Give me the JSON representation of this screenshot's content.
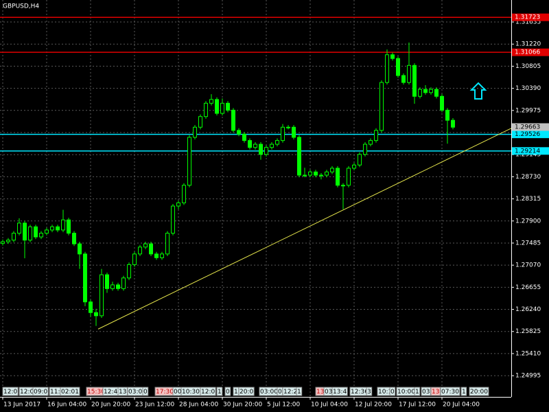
{
  "chart_data": {
    "type": "candlestick",
    "title": "GBPUSD,H4",
    "x": [
      0,
      2,
      4,
      6,
      8,
      10,
      12,
      14,
      16,
      18,
      20,
      22,
      24,
      26,
      28,
      30,
      32,
      34,
      36,
      38,
      40,
      42,
      44,
      46,
      48,
      50,
      52,
      54,
      56,
      58,
      60,
      62,
      64,
      66,
      68,
      70,
      72,
      74,
      76,
      78,
      80,
      82,
      84,
      86,
      88,
      90,
      92,
      94,
      96,
      98,
      100,
      102,
      104,
      106,
      108,
      110,
      112,
      114,
      116,
      118,
      120,
      122,
      124,
      126,
      128,
      130,
      132,
      134,
      136,
      138,
      140,
      142,
      144,
      146,
      148,
      150,
      152,
      154,
      156,
      158,
      160,
      162,
      164
    ],
    "open": [
      1.2748,
      1.2751,
      1.2754,
      1.2767,
      1.2786,
      1.2754,
      1.2779,
      1.276,
      1.2767,
      1.2773,
      1.2779,
      1.2773,
      1.2792,
      1.2767,
      1.2747,
      1.2728,
      1.2638,
      1.2618,
      1.2612,
      1.2689,
      1.2663,
      1.267,
      1.2663,
      1.2683,
      1.2708,
      1.2728,
      1.2741,
      1.2747,
      1.2728,
      1.2721,
      1.2728,
      1.2767,
      1.2818,
      1.2824,
      1.2857,
      1.2947,
      1.2966,
      1.2986,
      1.3011,
      1.3018,
      1.2992,
      1.3011,
      1.2998,
      1.296,
      1.2953,
      1.2941,
      1.2928,
      1.2934,
      1.2915,
      1.2928,
      1.2934,
      1.2941,
      1.2966,
      1.2966,
      1.2947,
      1.2876,
      1.2876,
      1.2882,
      1.2876,
      1.2876,
      1.2882,
      1.2889,
      1.2857,
      1.2857,
      1.2889,
      1.2895,
      1.2915,
      1.2934,
      1.2941,
      1.296,
      1.305,
      1.3102,
      1.3095,
      1.3063,
      1.305,
      1.3082,
      1.3024,
      1.3037,
      1.3031,
      1.3037,
      1.3024,
      1.2998,
      1.2979
    ],
    "high": [
      1.2755,
      1.2758,
      1.2771,
      1.2795,
      1.279,
      1.2783,
      1.2783,
      1.2771,
      1.2777,
      1.2783,
      1.2783,
      1.2811,
      1.2796,
      1.2771,
      1.2751,
      1.2732,
      1.2642,
      1.2625,
      1.27,
      1.2693,
      1.2676,
      1.2674,
      1.2687,
      1.2712,
      1.2732,
      1.2745,
      1.2751,
      1.2751,
      1.2732,
      1.2732,
      1.2771,
      1.2822,
      1.2828,
      1.2861,
      1.2951,
      1.297,
      1.299,
      1.3015,
      1.3028,
      1.3022,
      1.302,
      1.3015,
      1.3002,
      1.2964,
      1.2957,
      1.2945,
      1.2938,
      1.2938,
      1.2932,
      1.2938,
      1.2945,
      1.2972,
      1.297,
      1.297,
      1.2951,
      1.289,
      1.2886,
      1.2886,
      1.288,
      1.2886,
      1.2893,
      1.2893,
      1.2861,
      1.2893,
      1.2899,
      1.2919,
      1.2938,
      1.2945,
      1.2964,
      1.3054,
      1.3112,
      1.3106,
      1.3099,
      1.3067,
      1.3125,
      1.3086,
      1.3041,
      1.3045,
      1.3041,
      1.3041,
      1.3028,
      1.3002,
      1.2983
    ],
    "low": [
      1.2744,
      1.2747,
      1.275,
      1.2763,
      1.272,
      1.275,
      1.2756,
      1.2756,
      1.2763,
      1.2769,
      1.2769,
      1.2769,
      1.2763,
      1.2743,
      1.27,
      1.263,
      1.261,
      1.2593,
      1.2608,
      1.2655,
      1.2659,
      1.2659,
      1.2659,
      1.2679,
      1.2704,
      1.2724,
      1.2737,
      1.2724,
      1.2717,
      1.2717,
      1.2724,
      1.2763,
      1.2812,
      1.282,
      1.2853,
      1.2943,
      1.2962,
      1.2982,
      1.3007,
      1.2988,
      1.2988,
      1.2994,
      1.2956,
      1.2949,
      1.2937,
      1.2924,
      1.2924,
      1.2905,
      1.2911,
      1.2924,
      1.293,
      1.2937,
      1.2962,
      1.2943,
      1.2872,
      1.2872,
      1.2872,
      1.2872,
      1.2868,
      1.2872,
      1.2878,
      1.2853,
      1.2812,
      1.2853,
      1.2885,
      1.2891,
      1.2911,
      1.293,
      1.2937,
      1.2956,
      1.3046,
      1.3091,
      1.3059,
      1.3046,
      1.3046,
      1.301,
      1.302,
      1.3027,
      1.3027,
      1.302,
      1.2994,
      1.2935,
      1.2962
    ],
    "close": [
      1.2751,
      1.2754,
      1.2767,
      1.2786,
      1.2754,
      1.2779,
      1.276,
      1.2767,
      1.2773,
      1.2779,
      1.2773,
      1.2792,
      1.2767,
      1.2747,
      1.2728,
      1.2638,
      1.2618,
      1.2612,
      1.2689,
      1.2663,
      1.267,
      1.2663,
      1.2683,
      1.2708,
      1.2728,
      1.2741,
      1.2747,
      1.2728,
      1.2721,
      1.2728,
      1.2767,
      1.2818,
      1.2824,
      1.2857,
      1.2947,
      1.2966,
      1.2986,
      1.3011,
      1.3018,
      1.2992,
      1.3011,
      1.2998,
      1.296,
      1.2953,
      1.2941,
      1.2928,
      1.2934,
      1.2915,
      1.2928,
      1.2934,
      1.2941,
      1.2966,
      1.2966,
      1.2947,
      1.2876,
      1.2876,
      1.2882,
      1.2876,
      1.2876,
      1.2882,
      1.2889,
      1.2857,
      1.2857,
      1.2889,
      1.2895,
      1.2915,
      1.2934,
      1.2941,
      1.296,
      1.305,
      1.3102,
      1.3095,
      1.3063,
      1.305,
      1.3082,
      1.3024,
      1.3037,
      1.3031,
      1.3037,
      1.3024,
      1.2998,
      1.2979,
      1.2966
    ],
    "color": "#00ff00",
    "xlim": [
      -1,
      185.25
    ],
    "ylim": [
      1.24597,
      1.32048
    ],
    "yticks": [
      1.31635,
      {
        "value": 1.3122,
        "label": "1.31220"
      },
      1.30805,
      {
        "value": 1.3039,
        "label": "1.30390"
      },
      1.29975,
      {
        "value": 1.2956,
        "label": "1.29560"
      },
      1.29145,
      {
        "value": 1.2873,
        "label": "1.28730"
      },
      1.28315,
      {
        "value": 1.279,
        "label": "1.27900"
      },
      1.27485,
      {
        "value": 1.2707,
        "label": "1.27070"
      },
      1.26655,
      {
        "value": 1.2624,
        "label": "1.26240"
      },
      1.25825,
      {
        "value": 1.2541,
        "label": "1.25410"
      },
      1.24995
    ],
    "xticks": [
      {
        "value": 0,
        "label": "13 Jun 2017"
      },
      {
        "value": 16,
        "label": "16 Jun 04:00"
      },
      {
        "value": 32,
        "label": "20 Jun 20:00"
      },
      {
        "value": 48,
        "label": "23 Jun 12:00"
      },
      {
        "value": 64,
        "label": "28 Jun 04:00"
      },
      {
        "value": 80,
        "label": "30 Jun 20:00"
      },
      {
        "value": 96,
        "label": "5 Jul 12:00"
      },
      {
        "value": 112,
        "label": "10 Jul 04:00"
      },
      {
        "value": 128,
        "label": "12 Jul 20:00"
      },
      {
        "value": 144,
        "label": "17 Jul 12:00"
      },
      {
        "value": 160,
        "label": "20 Jul 04:00"
      }
    ],
    "grid": true,
    "hlines": [
      {
        "value": 1.31723,
        "color": "#e00000"
      },
      {
        "value": 1.31066,
        "color": "#e00000"
      },
      {
        "value": 1.29526,
        "color": "#00e8ff"
      },
      {
        "value": 1.29214,
        "color": "#00e8ff"
      }
    ],
    "bid": {
      "value": 1.29663,
      "color": "#c0c0c0"
    },
    "trendline": {
      "x": [
        34.75,
        185.25
      ],
      "y": [
        1.2587,
        1.2964
      ],
      "color": "#e6e64c"
    },
    "events": [
      {
        "x": 0,
        "label": "12:0",
        "color": "#d8ecec"
      },
      {
        "x": 6,
        "label": "12:0",
        "color": "#d8ecec"
      },
      {
        "x": 11,
        "label": "09:0",
        "color": "#d8ecec"
      },
      {
        "x": 17,
        "label": "11:0",
        "color": "#d8ecec"
      },
      {
        "x": 21,
        "label": "02:01",
        "color": "#d8ecec"
      },
      {
        "x": 30.5,
        "label": "15:30",
        "color": "#f4c4c4"
      },
      {
        "x": 36.5,
        "label": "12:40",
        "color": "#d8ecec"
      },
      {
        "x": 42,
        "label": "13",
        "color": "#d8ecec"
      },
      {
        "x": 45.5,
        "label": "03:00",
        "color": "#d8ecec"
      },
      {
        "x": 51,
        "label": "0",
        "color": "#d8ecec"
      },
      {
        "x": 55.5,
        "label": "17:30",
        "color": "#f4c4c4"
      },
      {
        "x": 62,
        "label": "00",
        "color": "#d8ecec"
      },
      {
        "x": 65,
        "label": "10:30",
        "color": "#d8ecec"
      },
      {
        "x": 72,
        "label": "12:0",
        "color": "#d8ecec"
      },
      {
        "x": 78,
        "label": "1",
        "color": "#d8ecec"
      },
      {
        "x": 81,
        "label": "0",
        "color": "#d8ecec"
      },
      {
        "x": 84,
        "label": "1",
        "color": "#d8ecec"
      },
      {
        "x": 86,
        "label": "20:0",
        "color": "#d8ecec"
      },
      {
        "x": 93.5,
        "label": "03:00",
        "color": "#d8ecec"
      },
      {
        "x": 100,
        "label": "0",
        "color": "#d8ecec"
      },
      {
        "x": 102,
        "label": "12:2",
        "color": "#d8ecec"
      },
      {
        "x": 107,
        "label": "1",
        "color": "#d8ecec"
      },
      {
        "x": 114,
        "label": "13",
        "color": "#f4c4c4"
      },
      {
        "x": 117,
        "label": "03",
        "color": "#d8ecec"
      },
      {
        "x": 120,
        "label": "13:4",
        "color": "#d8ecec"
      },
      {
        "x": 126.5,
        "label": "12:36",
        "color": "#d8ecec"
      },
      {
        "x": 132.5,
        "label": "3",
        "color": "#d8ecec"
      },
      {
        "x": 136.5,
        "label": "10:1",
        "color": "#d8ecec"
      },
      {
        "x": 141,
        "label": "0",
        "color": "#d8ecec"
      },
      {
        "x": 143.5,
        "label": "10:00",
        "color": "#d8ecec"
      },
      {
        "x": 150,
        "label": "1",
        "color": "#d8ecec"
      },
      {
        "x": 152.5,
        "label": "03",
        "color": "#d8ecec"
      },
      {
        "x": 156,
        "label": "13",
        "color": "#f4c4c4"
      },
      {
        "x": 159.5,
        "label": "07:30",
        "color": "#d8ecec"
      },
      {
        "x": 167,
        "label": "1",
        "color": "#d8ecec"
      },
      {
        "x": 170,
        "label": "20:00",
        "color": "#d8ecec"
      }
    ]
  }
}
